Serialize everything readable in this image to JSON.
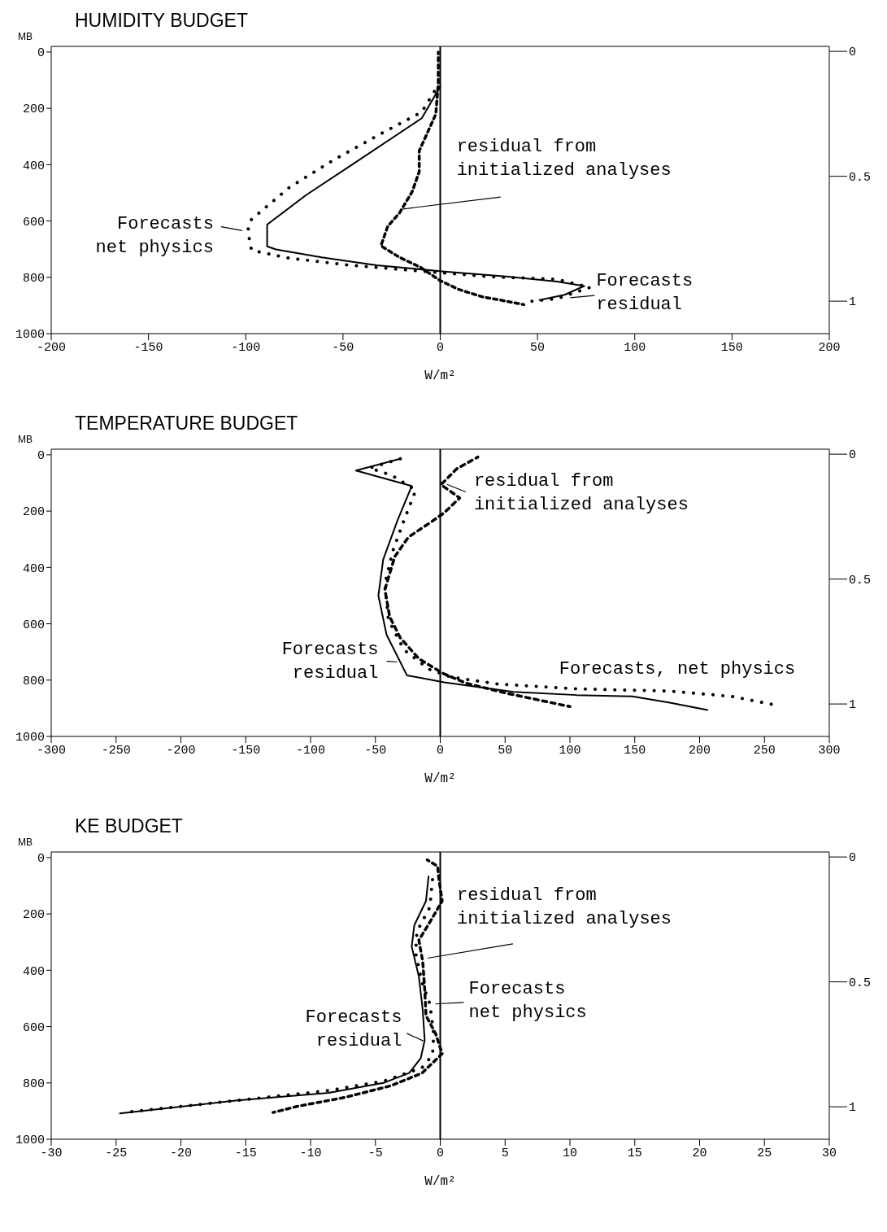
{
  "chart_data": [
    {
      "type": "line",
      "title": "HUMIDITY BUDGET",
      "xlabel": "W/m²",
      "ylabel": "MB",
      "marker": "none",
      "xlim": [
        -200,
        200
      ],
      "xticks": [
        -200,
        -150,
        -100,
        -50,
        0,
        50,
        100,
        150,
        200
      ],
      "ylim": [
        1000,
        -20
      ],
      "yticks": [
        0,
        200,
        400,
        600,
        800,
        1000
      ],
      "y2lim": [
        1.13,
        -0.02
      ],
      "y2ticks": [
        0,
        0.5,
        1
      ],
      "ref_lines": [
        {
          "axis": "x",
          "value": 0,
          "color": "#000000"
        }
      ],
      "series": [
        {
          "color": "#000000",
          "line_style": "solid",
          "x": [
            0,
            -9.5,
            -46.6,
            -69,
            -89,
            -89,
            -84.5,
            -61,
            -32.7,
            1,
            35,
            60,
            74,
            64,
            51
          ],
          "values": [
            122,
            235,
            406,
            508,
            613,
            690,
            701,
            729,
            757,
            779,
            798,
            815,
            831,
            862,
            881
          ]
        },
        {
          "color": "#000000",
          "line_style": "dotted",
          "x": [
            -3,
            -9.5,
            -30.5,
            -55,
            -77.6,
            -97,
            -99,
            -97,
            -77.6,
            -46.6,
            -18.8,
            26,
            60,
            77,
            60,
            47
          ],
          "values": [
            140,
            213,
            290,
            384,
            481,
            594,
            635,
            704,
            732,
            757,
            773,
            798,
            807,
            836,
            876,
            885
          ]
        },
        {
          "color": "#000000",
          "line_style": "dashed",
          "x": [
            -1,
            -1,
            -2.3,
            -10.8,
            -10.8,
            -14.5,
            -21,
            -27,
            -30.5,
            -21,
            -10,
            0,
            9.5,
            22,
            31,
            43
          ],
          "values": [
            0,
            110,
            221,
            351,
            425,
            497,
            572,
            619,
            688,
            729,
            765,
            812,
            843,
            870,
            881,
            897
          ]
        }
      ],
      "annotations": [
        {
          "text": "residual from\ninitialized analyses",
          "x": -20,
          "y": 558
        },
        {
          "text": "Forecasts\nnet physics",
          "x": -101,
          "y": 635
        },
        {
          "text": "Forecasts\nresidual",
          "x": 66,
          "y": 873
        }
      ]
    },
    {
      "type": "line",
      "title": "TEMPERATURE BUDGET",
      "xlabel": "W/m²",
      "ylabel": "MB",
      "marker": "none",
      "xlim": [
        -300,
        300
      ],
      "xticks": [
        -300,
        -250,
        -200,
        -150,
        -100,
        -50,
        0,
        50,
        100,
        150,
        200,
        250,
        300
      ],
      "ylim": [
        1000,
        -20
      ],
      "yticks": [
        0,
        200,
        400,
        600,
        800,
        1000
      ],
      "y2lim": [
        1.13,
        -0.02
      ],
      "y2ticks": [
        0,
        0.5,
        1
      ],
      "ref_lines": [
        {
          "axis": "x",
          "value": 0,
          "color": "#000000"
        }
      ],
      "series": [
        {
          "color": "#000000",
          "line_style": "solid",
          "x": [
            -30.8,
            -65,
            -22,
            -33,
            -44,
            -47.7,
            -41.4,
            -25.7,
            3,
            56.5,
            105,
            148,
            177,
            206
          ],
          "values": [
            14,
            56,
            111,
            233,
            372,
            500,
            639,
            783,
            808,
            842,
            853,
            858,
            880,
            906
          ]
        },
        {
          "color": "#000000",
          "line_style": "dotted",
          "x": [
            -30.8,
            -54.6,
            -37.7,
            -18.8,
            -28,
            -36.4,
            -42.7,
            -40,
            -28,
            -8.8,
            8,
            44.6,
            105,
            177,
            225,
            259
          ],
          "values": [
            14,
            47,
            72,
            125,
            233,
            339,
            458,
            586,
            692,
            761,
            789,
            814,
            831,
            839,
            858,
            889
          ]
        },
        {
          "color": "#000000",
          "line_style": "dashed",
          "x": [
            29,
            12.6,
            0.6,
            15,
            3,
            -8.8,
            -24.5,
            -35,
            -42.7,
            -39,
            -30.8,
            -16.3,
            3,
            20,
            51.5,
            100
          ],
          "values": [
            8,
            50,
            106,
            153,
            206,
            244,
            292,
            361,
            478,
            575,
            650,
            725,
            778,
            811,
            847,
            894
          ]
        }
      ],
      "annotations": [
        {
          "text": "residual from\ninitialized analyses",
          "x": 4,
          "y": 103
        },
        {
          "text": "Forecasts\nresidual",
          "x": -32,
          "y": 736
        },
        {
          "text": "Forecasts, net physics",
          "x": 150,
          "y": 836
        }
      ]
    },
    {
      "type": "line",
      "title": "KE BUDGET",
      "xlabel": "W/m²",
      "ylabel": "MB",
      "marker": "none",
      "xlim": [
        -30,
        30
      ],
      "xticks": [
        -30,
        -25,
        -20,
        -15,
        -10,
        -5,
        0,
        5,
        10,
        15,
        20,
        25,
        30
      ],
      "ylim": [
        1000,
        -20
      ],
      "yticks": [
        0,
        200,
        400,
        600,
        800,
        1000
      ],
      "y2lim": [
        1.13,
        -0.02
      ],
      "y2ticks": [
        0,
        0.5,
        1
      ],
      "ref_lines": [
        {
          "axis": "x",
          "value": 0,
          "color": "#000000"
        }
      ],
      "series": [
        {
          "color": "#000000",
          "line_style": "solid",
          "x": [
            -0.9,
            -1.1,
            -2,
            -2.2,
            -1.65,
            -1.35,
            -1.2,
            -1.5,
            -2.4,
            -4.3,
            -8.6,
            -15.8,
            -24.7
          ],
          "values": [
            67,
            154,
            240,
            316,
            422,
            542,
            648,
            712,
            765,
            799,
            835,
            863,
            908
          ]
        },
        {
          "color": "#000000",
          "line_style": "dotted",
          "x": [
            -0.6,
            -0.8,
            -1.8,
            -1.9,
            -1.4,
            -0.8,
            -0.5,
            -0.6,
            -1.4,
            -4.3,
            -8.6,
            -15.8,
            -24.4
          ],
          "values": [
            78,
            176,
            263,
            338,
            444,
            520,
            626,
            701,
            746,
            793,
            827,
            863,
            905
          ]
        },
        {
          "color": "#000000",
          "line_style": "dashed",
          "x": [
            -1,
            -0.2,
            -0.1,
            0.15,
            -0.8,
            -1.65,
            -1.35,
            -1.2,
            -1.1,
            -0.35,
            0.15,
            -1.4,
            -3.8,
            -7.4,
            -11,
            -12.9
          ],
          "values": [
            8,
            31,
            78,
            154,
            229,
            293,
            369,
            466,
            561,
            626,
            696,
            765,
            810,
            852,
            883,
            905
          ]
        }
      ],
      "annotations": [
        {
          "text": "residual from\ninitialized analyses",
          "x": -1.1,
          "y": 358
        },
        {
          "text": "Forecasts\nnet physics",
          "x": -0.5,
          "y": 520
        },
        {
          "text": "Forecasts\nresidual",
          "x": -1.2,
          "y": 653
        }
      ]
    }
  ]
}
